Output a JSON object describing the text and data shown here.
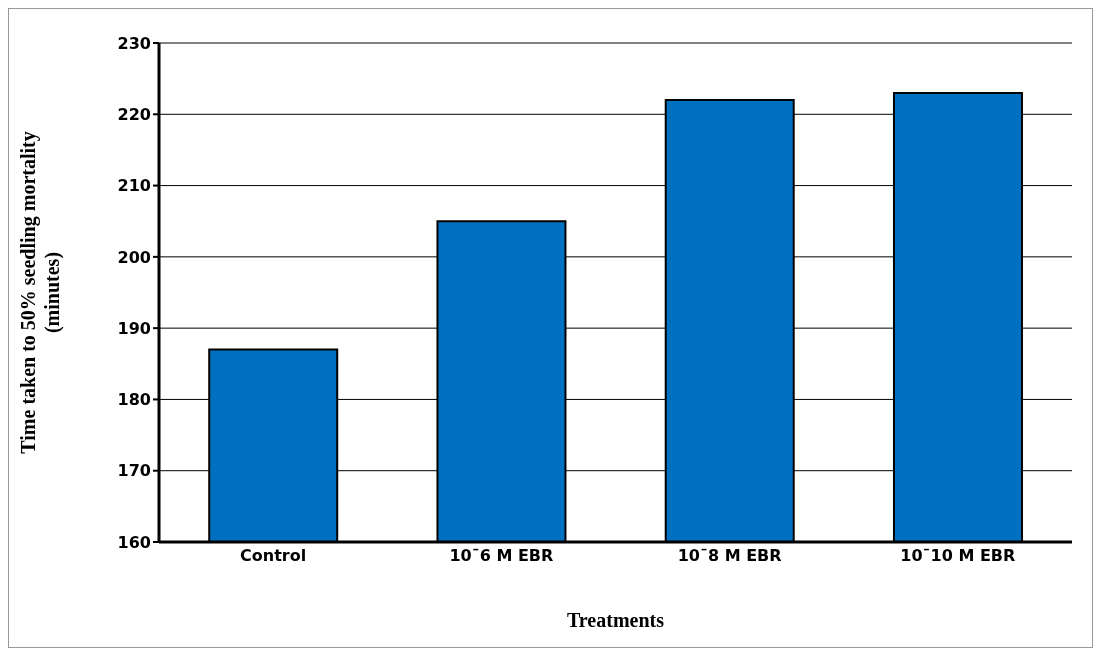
{
  "chart_data": {
    "type": "bar",
    "xlabel": "Treatments",
    "ylabel": "Time taken to 50% seedling mortality\n(minutes)",
    "categories": [
      "Control",
      "10¯6 M EBR",
      "10¯8 M EBR",
      "10¯10 M EBR"
    ],
    "values": [
      187,
      205,
      222,
      223
    ],
    "color": "#0070c0",
    "ylim": [
      160,
      230
    ],
    "yticks": [
      160,
      170,
      180,
      190,
      200,
      210,
      220,
      230
    ],
    "grid": "y"
  }
}
